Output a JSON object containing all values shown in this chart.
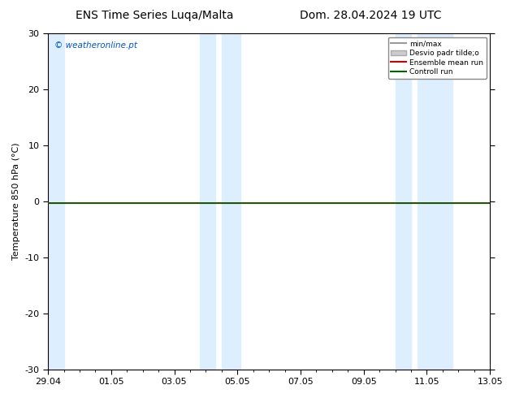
{
  "title_left": "ENS Time Series Luqa/Malta",
  "title_right": "Dom. 28.04.2024 19 UTC",
  "ylabel": "Temperature 850 hPa (°C)",
  "ylim": [
    -30,
    30
  ],
  "yticks": [
    -30,
    -20,
    -10,
    0,
    10,
    20,
    30
  ],
  "xtick_labels": [
    "29.04",
    "01.05",
    "03.05",
    "05.05",
    "07.05",
    "09.05",
    "11.05",
    "13.05"
  ],
  "xtick_positions": [
    0,
    2,
    4,
    6,
    8,
    10,
    12,
    14
  ],
  "xlim": [
    0,
    14
  ],
  "watermark": "© weatheronline.pt",
  "watermark_color": "#0055cc",
  "bg_color": "#ffffff",
  "plot_bg_color": "#ffffff",
  "shaded_regions": [
    {
      "x_start": -0.1,
      "x_end": 0.5,
      "color": "#ddeeff"
    },
    {
      "x_start": 4.8,
      "x_end": 5.3,
      "color": "#ddeeff"
    },
    {
      "x_start": 5.5,
      "x_end": 6.1,
      "color": "#ddeeff"
    },
    {
      "x_start": 11.0,
      "x_end": 11.5,
      "color": "#ddeeff"
    },
    {
      "x_start": 11.7,
      "x_end": 12.8,
      "color": "#ddeeff"
    }
  ],
  "control_run_y": -0.3,
  "ensemble_mean_y": -0.3,
  "control_run_color": "#006600",
  "ensemble_mean_color": "#cc0000",
  "minmax_color": "#999999",
  "std_color": "#cccccc",
  "legend_labels": [
    "min/max",
    "Desvio padr tilde;o",
    "Ensemble mean run",
    "Controll run"
  ],
  "legend_colors": [
    "#999999",
    "#cccccc",
    "#cc0000",
    "#006600"
  ],
  "title_fontsize": 10,
  "label_fontsize": 8,
  "tick_fontsize": 8,
  "hline_y": -0.3,
  "hline_color": "#000000"
}
